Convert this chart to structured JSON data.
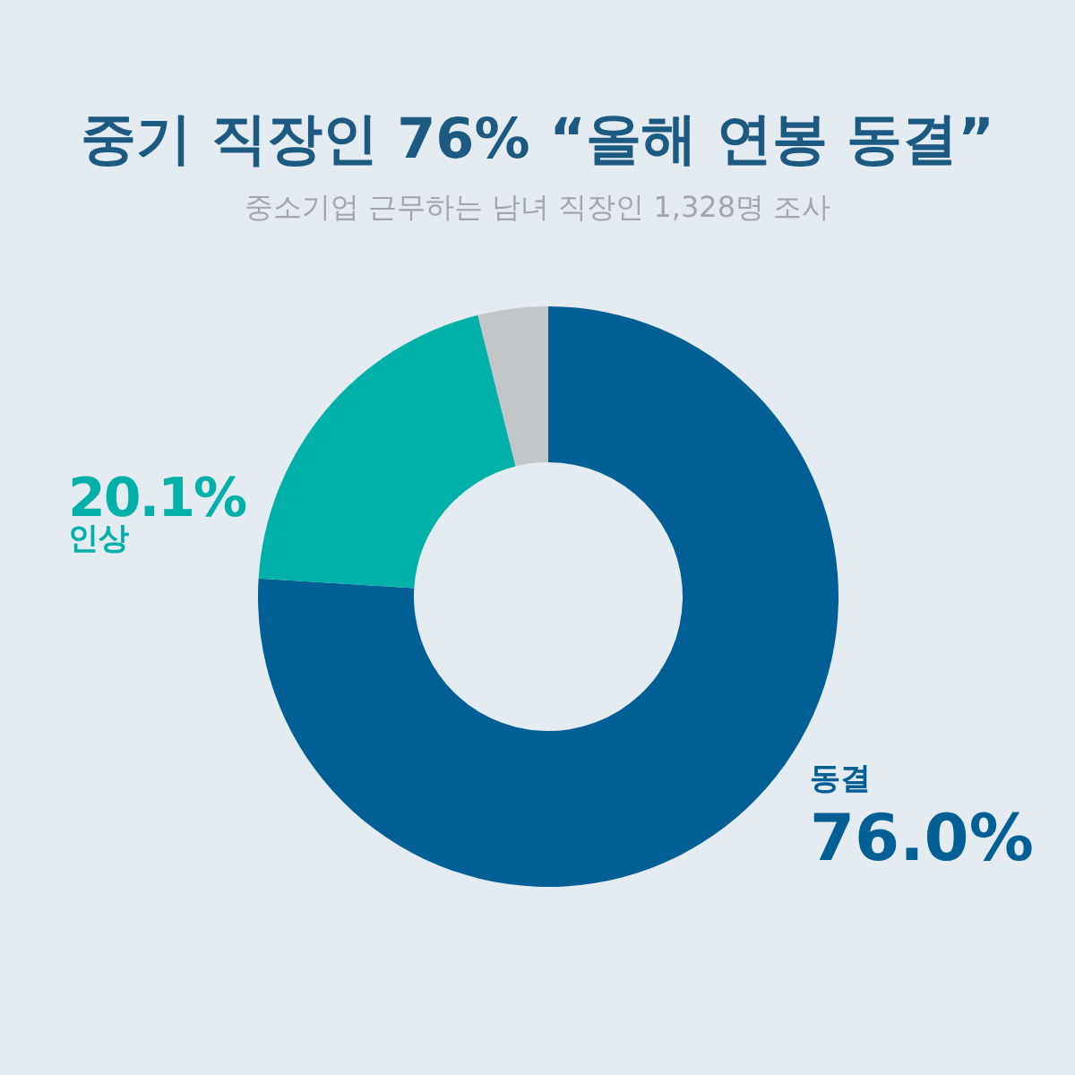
{
  "chart_data": {
    "type": "donut",
    "title": "중기 직장인 76% “올해 연봉 동결”",
    "subtitle": "중소기업 근무하는 남녀 직장인 1,328명 조사",
    "categories": [
      "동결",
      "인상",
      null
    ],
    "values": [
      76.0,
      20.1,
      3.9
    ],
    "colors": [
      "#005f94",
      "#00b1a9",
      "#c3c6c8"
    ],
    "value_labels": [
      "76.0%",
      "20.1%",
      null
    ]
  }
}
